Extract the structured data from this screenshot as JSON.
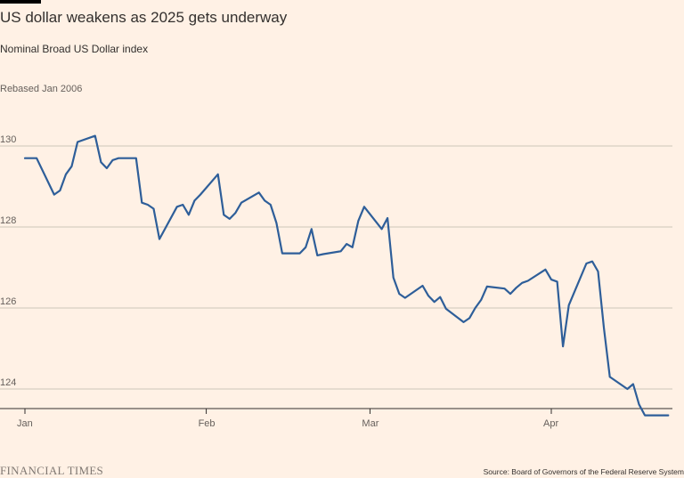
{
  "header": {
    "title": "US dollar weakens as 2025 gets underway",
    "subtitle": "Nominal Broad US Dollar index",
    "unit_note": "Rebased Jan 2006"
  },
  "footer": {
    "brand": "FINANCIAL TIMES",
    "source": "Source: Board of Governors of the Federal Reserve System"
  },
  "colors": {
    "background": "#FFF1E5",
    "line": "#2E5E99",
    "grid": "#CEC6B9",
    "axis": "#33302E"
  },
  "chart_data": {
    "type": "line",
    "title": "US dollar weakens as 2025 gets underway",
    "subtitle": "Nominal Broad US Dollar index",
    "ylabel": "Rebased Jan 2006",
    "ylim": [
      123.0,
      131.0
    ],
    "yticks": [
      124,
      126,
      128,
      130
    ],
    "xticks": [
      {
        "date": "2025-01-01",
        "label": "Jan"
      },
      {
        "date": "2025-02-01",
        "label": "Feb"
      },
      {
        "date": "2025-03-01",
        "label": "Mar"
      },
      {
        "date": "2025-04-01",
        "label": "Apr"
      }
    ],
    "xlim": [
      "2025-01-01",
      "2025-04-28"
    ],
    "grid": true,
    "legend": "none",
    "series": [
      {
        "x": [
          "2025-01-01",
          "2025-01-02",
          "2025-01-03",
          "2025-01-06",
          "2025-01-07",
          "2025-01-08",
          "2025-01-09",
          "2025-01-10",
          "2025-01-13",
          "2025-01-14",
          "2025-01-15",
          "2025-01-16",
          "2025-01-17",
          "2025-01-20",
          "2025-01-21",
          "2025-01-22",
          "2025-01-23",
          "2025-01-24",
          "2025-01-27",
          "2025-01-28",
          "2025-01-29",
          "2025-01-30",
          "2025-01-31",
          "2025-02-03",
          "2025-02-04",
          "2025-02-05",
          "2025-02-06",
          "2025-02-07",
          "2025-02-10",
          "2025-02-11",
          "2025-02-12",
          "2025-02-13",
          "2025-02-14",
          "2025-02-17",
          "2025-02-18",
          "2025-02-19",
          "2025-02-20",
          "2025-02-21",
          "2025-02-24",
          "2025-02-25",
          "2025-02-26",
          "2025-02-27",
          "2025-02-28",
          "2025-03-03",
          "2025-03-04",
          "2025-03-05",
          "2025-03-06",
          "2025-03-07",
          "2025-03-10",
          "2025-03-11",
          "2025-03-12",
          "2025-03-13",
          "2025-03-14",
          "2025-03-17",
          "2025-03-18",
          "2025-03-19",
          "2025-03-20",
          "2025-03-21",
          "2025-03-24",
          "2025-03-25",
          "2025-03-26",
          "2025-03-27",
          "2025-03-28",
          "2025-03-31",
          "2025-04-01",
          "2025-04-02",
          "2025-04-03",
          "2025-04-04",
          "2025-04-07",
          "2025-04-08",
          "2025-04-09",
          "2025-04-10",
          "2025-04-11",
          "2025-04-14",
          "2025-04-15",
          "2025-04-16",
          "2025-04-17",
          "2025-04-18",
          "2025-04-21"
        ],
        "values": [
          129.7,
          129.7,
          129.7,
          128.8,
          128.9,
          129.3,
          129.5,
          130.1,
          130.25,
          129.6,
          129.45,
          129.65,
          129.7,
          129.7,
          128.6,
          128.55,
          128.45,
          127.7,
          128.5,
          128.55,
          128.3,
          128.65,
          128.8,
          129.3,
          128.3,
          128.2,
          128.35,
          128.6,
          128.85,
          128.65,
          128.55,
          128.1,
          127.35,
          127.35,
          127.5,
          127.95,
          127.3,
          127.33,
          127.4,
          127.58,
          127.5,
          128.15,
          128.5,
          127.95,
          128.22,
          126.75,
          126.35,
          126.25,
          126.55,
          126.3,
          126.15,
          126.27,
          125.98,
          125.65,
          125.75,
          126.0,
          126.2,
          126.53,
          126.48,
          126.35,
          126.5,
          126.62,
          126.67,
          126.95,
          126.7,
          126.65,
          125.05,
          126.07,
          127.1,
          127.15,
          126.9,
          125.5,
          124.3,
          124.0,
          124.12,
          123.62,
          123.35,
          123.35,
          123.35
        ]
      }
    ]
  }
}
